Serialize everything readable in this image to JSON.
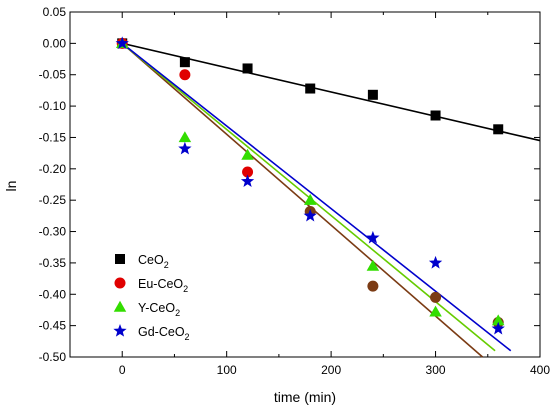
{
  "chart_data": {
    "type": "scatter",
    "xlabel": "time  (min)",
    "ylabel": "ln",
    "xlim": [
      -50,
      400
    ],
    "ylim": [
      -0.5,
      0.05
    ],
    "x_ticks": [
      0,
      100,
      200,
      300,
      400
    ],
    "y_ticks": [
      0.05,
      0.0,
      -0.05,
      -0.1,
      -0.15,
      -0.2,
      -0.25,
      -0.3,
      -0.35,
      -0.4,
      -0.45,
      -0.5
    ],
    "y_tick_labels": [
      "0.05",
      "0.00",
      "-0.05",
      "-0.10",
      "-0.15",
      "-0.20",
      "-0.25",
      "-0.30",
      "-0.35",
      "-0.40",
      "-0.45",
      "-0.50"
    ],
    "x": [
      0,
      60,
      120,
      180,
      240,
      300,
      360
    ],
    "legend_position": "bottom-left",
    "series": [
      {
        "key": "ceo2",
        "name_main": "CeO",
        "name_sub": "2",
        "name_tail": "",
        "marker": "square",
        "color": "#000000",
        "line_color": "#000000",
        "values": [
          0.0,
          -0.03,
          -0.04,
          -0.072,
          -0.082,
          -0.115,
          -0.137
        ],
        "fit": {
          "x": [
            0,
            400
          ],
          "y": [
            0.0,
            -0.155
          ]
        }
      },
      {
        "key": "eu",
        "name_main": "Eu-CeO",
        "name_sub": "2",
        "name_tail": "",
        "marker": "circle",
        "color": "#e00000",
        "later_color": "#7b3b14",
        "line_color": "#7b3b14",
        "values": [
          0.0,
          -0.05,
          -0.205,
          -0.268,
          -0.387,
          -0.405,
          -0.445
        ],
        "fit": {
          "x": [
            0,
            345
          ],
          "y": [
            0.0,
            -0.5
          ]
        }
      },
      {
        "key": "y",
        "name_main": "Y-CeO",
        "name_sub": "2",
        "name_tail": "",
        "marker": "triangle",
        "color": "#33dd00",
        "line_color": "#66cc00",
        "values": [
          0.0,
          -0.15,
          -0.178,
          -0.25,
          -0.355,
          -0.428,
          -0.442
        ],
        "fit": {
          "x": [
            0,
            357
          ],
          "y": [
            0.0,
            -0.49
          ]
        }
      },
      {
        "key": "gd",
        "name_main": "Gd-CeO",
        "name_sub": "2",
        "name_tail": "",
        "marker": "star",
        "color": "#0000cc",
        "line_color": "#0000cc",
        "values": [
          0.0,
          -0.168,
          -0.22,
          -0.275,
          -0.31,
          -0.35,
          -0.455
        ],
        "fit": {
          "x": [
            0,
            372
          ],
          "y": [
            0.0,
            -0.49
          ]
        }
      }
    ]
  }
}
